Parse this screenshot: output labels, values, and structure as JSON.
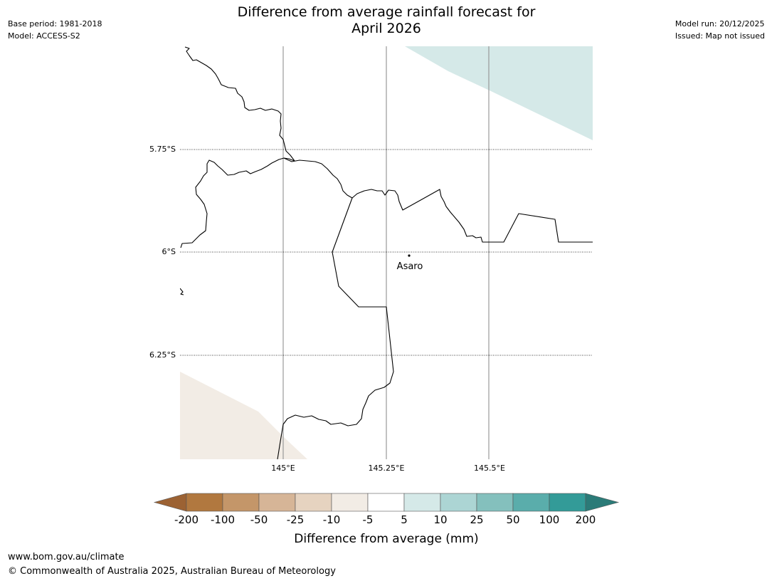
{
  "header": {
    "title_line1": "Difference from average rainfall forecast for",
    "title_line2": "April 2026",
    "base_period": "Base period: 1981-2018",
    "model": "Model: ACCESS-S2",
    "model_run": "Model run: 20/12/2025",
    "issued": "Issued: Map not issued"
  },
  "map": {
    "lat_labels": [
      "5.75°S",
      "6°S",
      "6.25°S"
    ],
    "lon_labels": [
      "145°E",
      "145.25°E",
      "145.5°E"
    ],
    "place_name": "Asaro",
    "colors": {
      "wet_10": "#d5e9e8",
      "dry_10": "#f2ece5",
      "coast": "#000000",
      "grid": "#999999"
    }
  },
  "legend": {
    "tick_labels": [
      "-200",
      "-100",
      "-50",
      "-25",
      "-10",
      "-5",
      "5",
      "10",
      "25",
      "50",
      "100",
      "200"
    ],
    "label": "Difference from average (mm)",
    "colors": [
      "#9c6233",
      "#b1783f",
      "#c49669",
      "#d6b597",
      "#e6d3c0",
      "#f2ece5",
      "#ffffff",
      "#d5e9e8",
      "#acd5d4",
      "#84c0bd",
      "#5aadab",
      "#339b98",
      "#2b7b78"
    ]
  },
  "footer": {
    "url": "www.bom.gov.au/climate",
    "copyright": "© Commonwealth of Australia 2025, Australian Bureau of Meteorology"
  }
}
